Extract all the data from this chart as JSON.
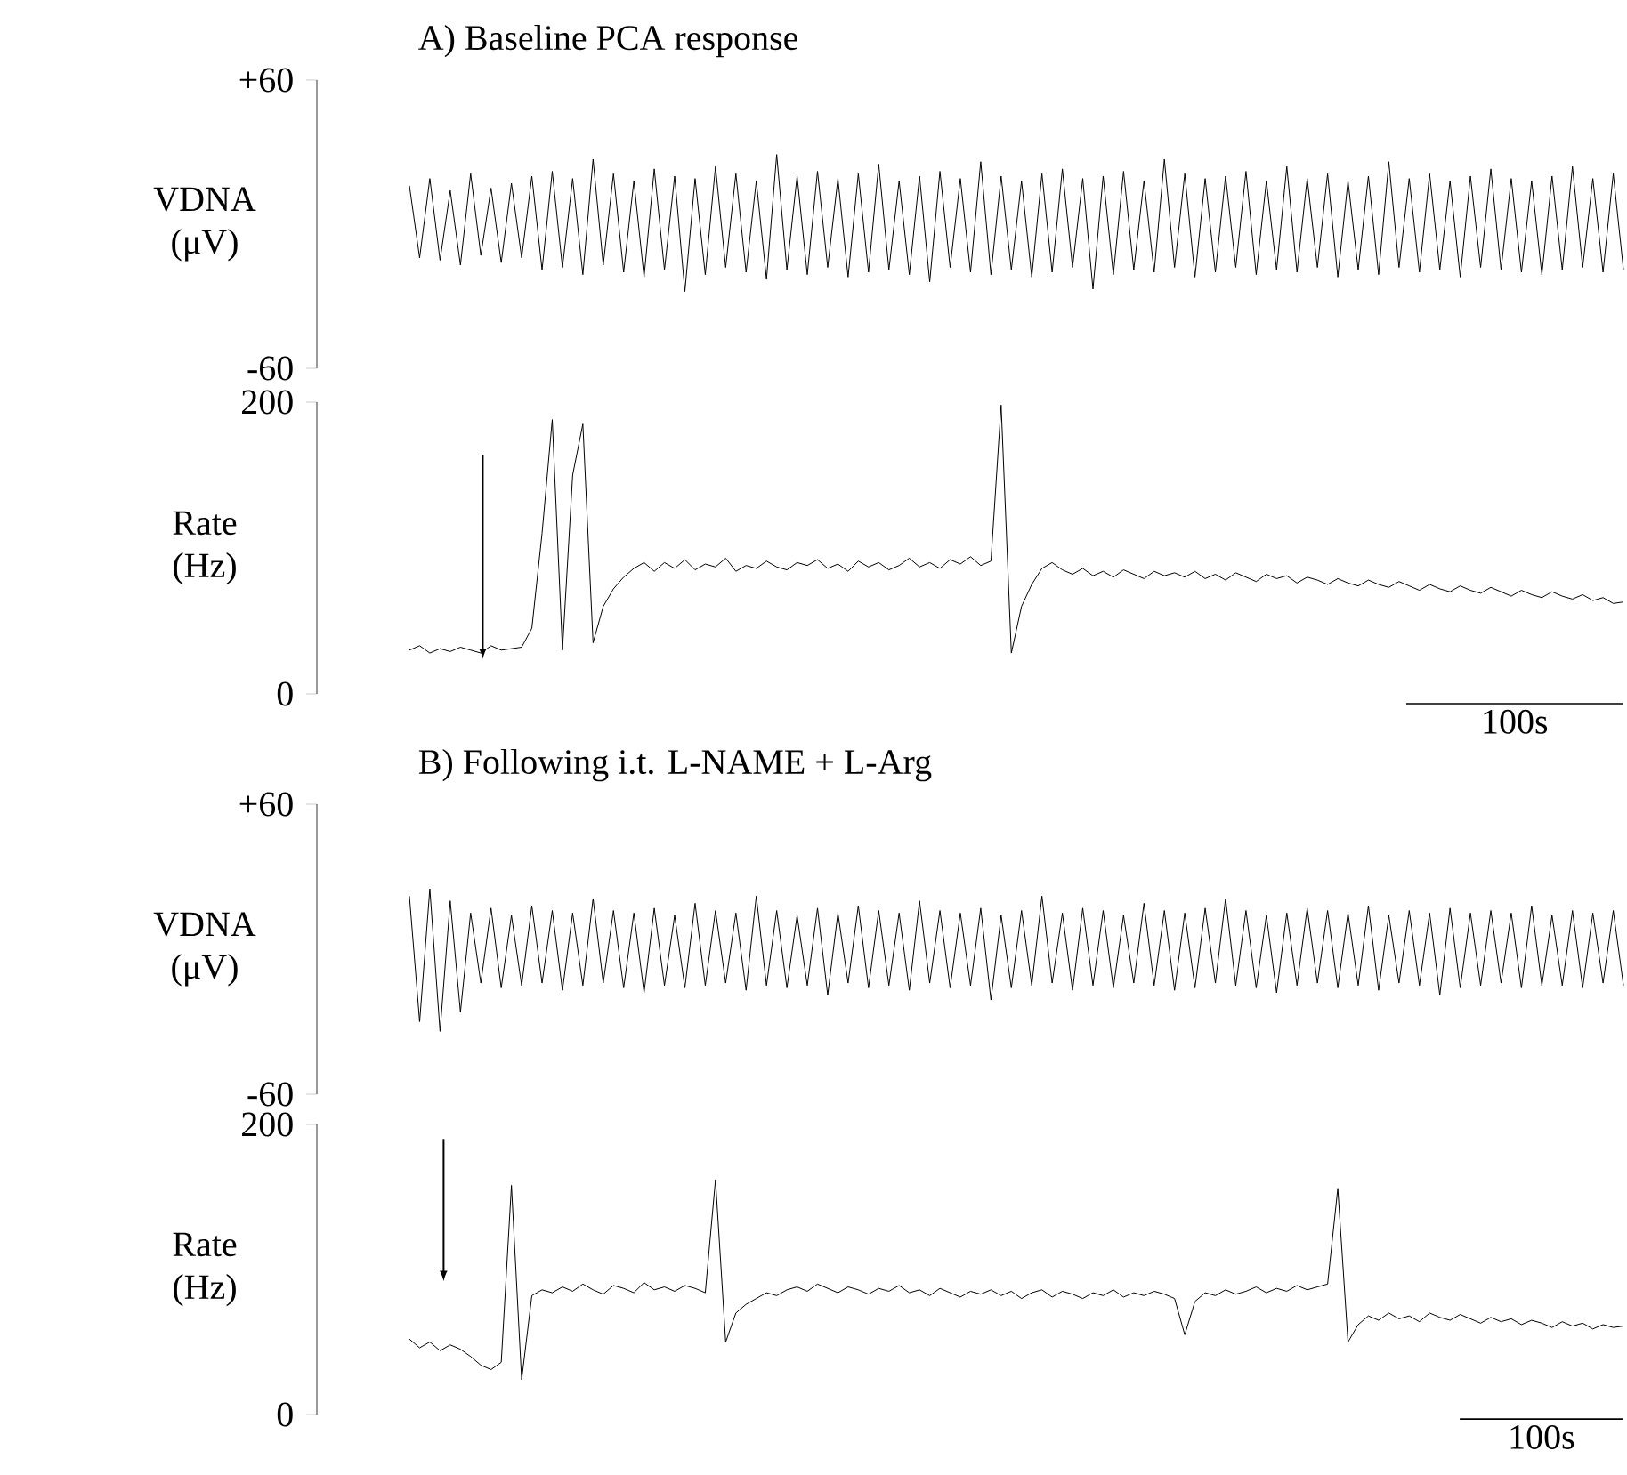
{
  "chart_data": [
    {
      "type": "line",
      "title": "A) Baseline PCA response",
      "ylabel": "VDNA (μV)",
      "ylim": [
        -60,
        60
      ],
      "yticks": [
        {
          "value": 60,
          "label": "+60"
        },
        -60
      ],
      "tick_labels": "y",
      "color": "#000000",
      "categories": [
        null,
        null,
        null,
        null,
        null,
        null,
        null,
        null,
        null,
        null,
        null,
        null,
        null,
        null,
        null,
        null,
        null,
        null,
        null,
        null,
        null,
        null,
        null,
        null,
        null,
        null,
        null,
        null,
        null,
        null,
        null,
        null,
        null,
        null,
        null,
        null,
        null,
        null,
        null,
        null,
        null,
        null,
        null,
        null,
        null,
        null,
        null,
        null,
        null,
        null,
        null,
        null,
        null,
        null,
        null,
        null,
        null,
        null,
        null,
        null,
        null,
        null,
        null,
        null,
        null,
        null,
        null,
        null,
        null,
        null,
        null,
        null,
        null,
        null,
        null,
        null,
        null,
        null,
        null,
        null,
        null,
        null,
        null,
        null,
        null,
        null,
        null,
        null,
        null,
        null,
        null,
        null,
        null,
        null,
        null,
        null,
        null,
        null,
        null,
        null,
        null,
        null,
        null,
        null,
        null,
        null,
        null,
        null,
        null,
        null,
        null,
        null,
        null,
        null,
        null,
        null,
        null,
        null,
        null,
        null
      ],
      "values": [
        16,
        -14,
        19,
        -15,
        14,
        -17,
        21,
        -13,
        15,
        -16,
        17,
        -14,
        20,
        -19,
        22,
        -18,
        19,
        -21,
        27,
        -17,
        21,
        -20,
        18,
        -22,
        23,
        -19,
        20,
        -28,
        19,
        -21,
        24,
        -18,
        21,
        -20,
        18,
        -23,
        29,
        -19,
        20,
        -21,
        22,
        -18,
        19,
        -22,
        21,
        -20,
        25,
        -19,
        18,
        -21,
        20,
        -24,
        22,
        -18,
        19,
        -20,
        26,
        -21,
        20,
        -19,
        18,
        -22,
        21,
        -20,
        23,
        -18,
        19,
        -27,
        20,
        -21,
        22,
        -19,
        18,
        -20,
        27,
        -18,
        21,
        -22,
        19,
        -20,
        20,
        -18,
        22,
        -21,
        18,
        -19,
        24,
        -20,
        19,
        -18,
        21,
        -22,
        18,
        -19,
        20,
        -21,
        26,
        -18,
        19,
        -20,
        21,
        -19,
        18,
        -22,
        20,
        -18,
        23,
        -19,
        19,
        -20,
        18,
        -21,
        20,
        -19,
        24,
        -18,
        19,
        -20,
        21,
        -19
      ]
    },
    {
      "type": "line",
      "ylabel": "Rate (Hz)",
      "ylim": [
        0,
        200
      ],
      "yticks": [
        0,
        200
      ],
      "tick_labels": "y",
      "color": "#000000",
      "annotations": [
        "100s"
      ],
      "categories": [
        null,
        null,
        null,
        null,
        null,
        null,
        null,
        null,
        null,
        null,
        null,
        null,
        null,
        null,
        null,
        null,
        null,
        null,
        null,
        null,
        null,
        null,
        null,
        null,
        null,
        null,
        null,
        null,
        null,
        null,
        null,
        null,
        null,
        null,
        null,
        null,
        null,
        null,
        null,
        null,
        null,
        null,
        null,
        null,
        null,
        null,
        null,
        null,
        null,
        null,
        null,
        null,
        null,
        null,
        null,
        null,
        null,
        null,
        null,
        null,
        null,
        null,
        null,
        null,
        null,
        null,
        null,
        null,
        null,
        null,
        null,
        null,
        null,
        null,
        null,
        null,
        null,
        null,
        null,
        null,
        null,
        null,
        null,
        null,
        null,
        null,
        null,
        null,
        null,
        null,
        null,
        null,
        null,
        null,
        null,
        null,
        null,
        null,
        null,
        null,
        null,
        null,
        null,
        null,
        null,
        null,
        null,
        null,
        null,
        null,
        null,
        null,
        null,
        null,
        null,
        null,
        null,
        null,
        null,
        null
      ],
      "values": [
        30,
        33,
        28,
        31,
        29,
        32,
        30,
        28,
        33,
        30,
        31,
        32,
        45,
        110,
        188,
        30,
        150,
        185,
        35,
        60,
        72,
        80,
        86,
        90,
        84,
        90,
        86,
        92,
        85,
        89,
        87,
        93,
        84,
        88,
        86,
        91,
        87,
        85,
        90,
        88,
        92,
        86,
        89,
        84,
        91,
        87,
        90,
        85,
        88,
        93,
        87,
        90,
        86,
        92,
        89,
        94,
        88,
        91,
        198,
        28,
        60,
        75,
        86,
        90,
        85,
        82,
        86,
        81,
        84,
        80,
        85,
        82,
        79,
        84,
        81,
        83,
        80,
        84,
        79,
        82,
        78,
        83,
        80,
        77,
        82,
        79,
        81,
        76,
        80,
        78,
        75,
        79,
        76,
        74,
        78,
        75,
        73,
        77,
        74,
        71,
        75,
        72,
        70,
        74,
        71,
        69,
        73,
        70,
        67,
        71,
        68,
        66,
        70,
        67,
        65,
        68,
        64,
        66,
        62,
        63
      ]
    },
    {
      "type": "line",
      "title": "B) Following i.t. L-NAME + L-Arg",
      "ylabel": "VDNA (μV)",
      "ylim": [
        -60,
        60
      ],
      "yticks": [
        {
          "value": 60,
          "label": "+60"
        },
        -60
      ],
      "tick_labels": "y",
      "color": "#000000",
      "categories": [
        null,
        null,
        null,
        null,
        null,
        null,
        null,
        null,
        null,
        null,
        null,
        null,
        null,
        null,
        null,
        null,
        null,
        null,
        null,
        null,
        null,
        null,
        null,
        null,
        null,
        null,
        null,
        null,
        null,
        null,
        null,
        null,
        null,
        null,
        null,
        null,
        null,
        null,
        null,
        null,
        null,
        null,
        null,
        null,
        null,
        null,
        null,
        null,
        null,
        null,
        null,
        null,
        null,
        null,
        null,
        null,
        null,
        null,
        null,
        null,
        null,
        null,
        null,
        null,
        null,
        null,
        null,
        null,
        null,
        null,
        null,
        null,
        null,
        null,
        null,
        null,
        null,
        null,
        null,
        null,
        null,
        null,
        null,
        null,
        null,
        null,
        null,
        null,
        null,
        null,
        null,
        null,
        null,
        null,
        null,
        null,
        null,
        null,
        null,
        null,
        null,
        null,
        null,
        null,
        null,
        null,
        null,
        null,
        null,
        null,
        null,
        null,
        null,
        null,
        null,
        null,
        null,
        null,
        null,
        null
      ],
      "values": [
        22,
        -30,
        25,
        -34,
        20,
        -26,
        15,
        -14,
        17,
        -16,
        14,
        -15,
        18,
        -14,
        16,
        -17,
        15,
        -15,
        21,
        -14,
        16,
        -16,
        15,
        -18,
        17,
        -15,
        14,
        -16,
        19,
        -15,
        16,
        -14,
        15,
        -17,
        22,
        -15,
        16,
        -16,
        14,
        -15,
        17,
        -19,
        15,
        -14,
        18,
        -16,
        16,
        -15,
        15,
        -17,
        20,
        -14,
        16,
        -16,
        15,
        -15,
        17,
        -21,
        14,
        -16,
        16,
        -15,
        22,
        -14,
        15,
        -17,
        17,
        -15,
        16,
        -16,
        14,
        -14,
        19,
        -15,
        16,
        -17,
        15,
        -16,
        17,
        -14,
        21,
        -15,
        16,
        -16,
        14,
        -18,
        15,
        -15,
        17,
        -14,
        16,
        -16,
        15,
        -15,
        18,
        -17,
        14,
        -14,
        16,
        -15,
        15,
        -19,
        17,
        -16,
        15,
        -15,
        16,
        -14,
        15,
        -16,
        18,
        -15,
        14,
        -15,
        16,
        -16,
        15,
        -14,
        16,
        -15
      ]
    },
    {
      "type": "line",
      "ylabel": "Rate (Hz)",
      "ylim": [
        0,
        200
      ],
      "yticks": [
        0,
        200
      ],
      "tick_labels": "y",
      "color": "#000000",
      "annotations": [
        "100s"
      ],
      "categories": [
        null,
        null,
        null,
        null,
        null,
        null,
        null,
        null,
        null,
        null,
        null,
        null,
        null,
        null,
        null,
        null,
        null,
        null,
        null,
        null,
        null,
        null,
        null,
        null,
        null,
        null,
        null,
        null,
        null,
        null,
        null,
        null,
        null,
        null,
        null,
        null,
        null,
        null,
        null,
        null,
        null,
        null,
        null,
        null,
        null,
        null,
        null,
        null,
        null,
        null,
        null,
        null,
        null,
        null,
        null,
        null,
        null,
        null,
        null,
        null,
        null,
        null,
        null,
        null,
        null,
        null,
        null,
        null,
        null,
        null,
        null,
        null,
        null,
        null,
        null,
        null,
        null,
        null,
        null,
        null,
        null,
        null,
        null,
        null,
        null,
        null,
        null,
        null,
        null,
        null,
        null,
        null,
        null,
        null,
        null,
        null,
        null,
        null,
        null,
        null,
        null,
        null,
        null,
        null,
        null,
        null,
        null,
        null,
        null,
        null,
        null,
        null,
        null,
        null,
        null,
        null,
        null,
        null,
        null,
        null
      ],
      "values": [
        52,
        46,
        50,
        44,
        48,
        45,
        40,
        34,
        31,
        36,
        158,
        24,
        82,
        86,
        84,
        88,
        85,
        90,
        86,
        83,
        89,
        87,
        84,
        91,
        86,
        88,
        85,
        89,
        87,
        84,
        162,
        50,
        70,
        76,
        80,
        84,
        82,
        86,
        88,
        85,
        90,
        87,
        84,
        88,
        86,
        83,
        87,
        85,
        89,
        84,
        86,
        82,
        87,
        84,
        81,
        85,
        83,
        86,
        82,
        85,
        80,
        84,
        86,
        81,
        85,
        83,
        80,
        84,
        82,
        86,
        81,
        84,
        82,
        85,
        83,
        80,
        55,
        78,
        84,
        82,
        86,
        83,
        85,
        88,
        84,
        87,
        85,
        89,
        86,
        88,
        90,
        156,
        50,
        62,
        68,
        65,
        70,
        66,
        68,
        64,
        70,
        67,
        65,
        69,
        66,
        63,
        67,
        64,
        66,
        62,
        65,
        63,
        60,
        64,
        61,
        63,
        59,
        62,
        60,
        61
      ]
    }
  ]
}
